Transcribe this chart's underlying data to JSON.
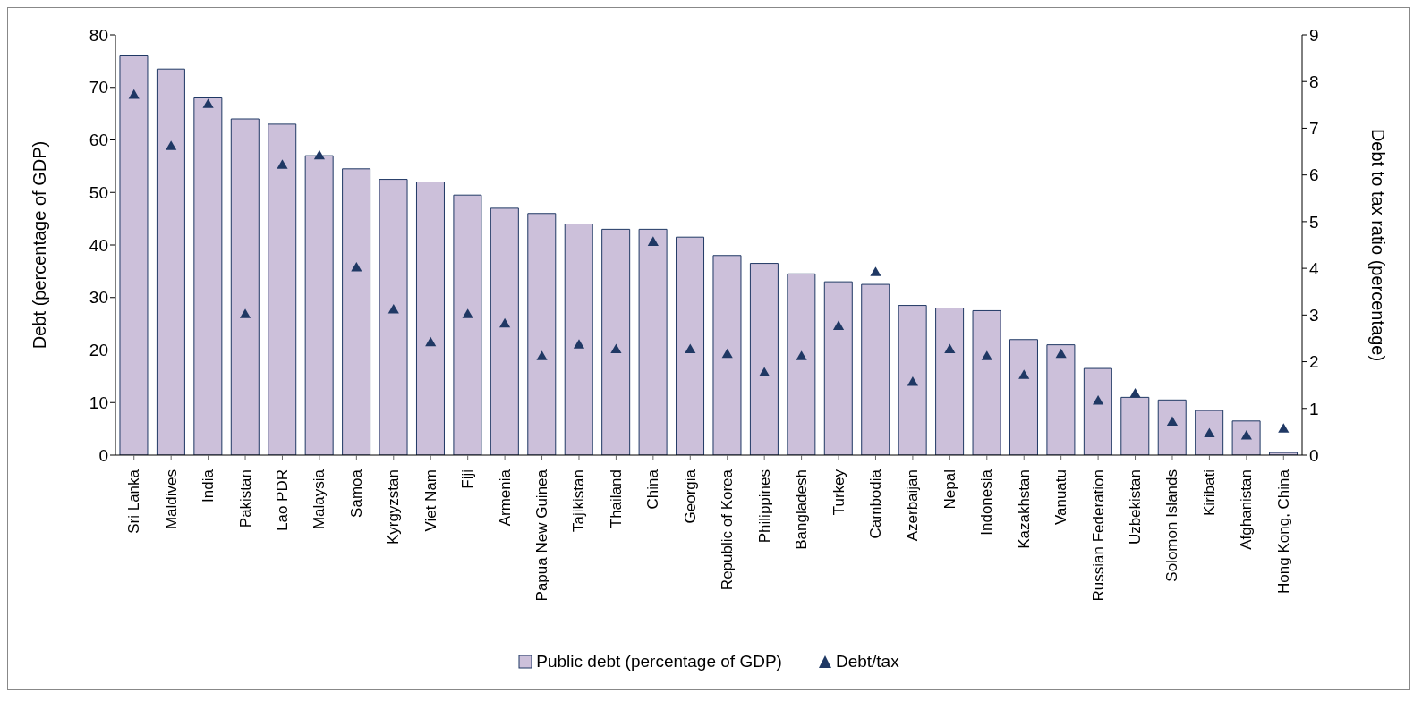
{
  "chart_data": {
    "type": "bar",
    "ylabel": "Debt (percentage of GDP)",
    "y2label": "Debt to tax ratio (percentage)",
    "categories": [
      "Sri Lanka",
      "Maldives",
      "India",
      "Pakistan",
      "Lao PDR",
      "Malaysia",
      "Samoa",
      "Kyrgyzstan",
      "Viet Nam",
      "Fiji",
      "Armenia",
      "Papua New Guinea",
      "Tajikistan",
      "Thailand",
      "China",
      "Georgia",
      "Republic of Korea",
      "Philippines",
      "Bangladesh",
      "Turkey",
      "Cambodia",
      "Azerbaijan",
      "Nepal",
      "Indonesia",
      "Kazakhstan",
      "Vanuatu",
      "Russian Federation",
      "Uzbekistan",
      "Solomon Islands",
      "Kiribati",
      "Afghanistan",
      "Hong Kong, China"
    ],
    "series": [
      {
        "name": "Public debt (percentage of GDP)",
        "color": "#ccc0da",
        "values": [
          76,
          73.5,
          68,
          64,
          63,
          57,
          54.5,
          52.5,
          52,
          49.5,
          47,
          46,
          44,
          43,
          43,
          41.5,
          38,
          36.5,
          34.5,
          33,
          32.5,
          28.5,
          28,
          27.5,
          22,
          21,
          16.5,
          11,
          10.5,
          8.5,
          6.5,
          0.5
        ]
      },
      {
        "name": "Debt/tax",
        "type": "scatter",
        "axis": "y2",
        "color": "#1f3864",
        "marker": "triangle",
        "values": [
          7.7,
          6.6,
          7.5,
          3.0,
          6.2,
          6.4,
          4.0,
          3.1,
          2.4,
          3.0,
          2.8,
          2.1,
          2.35,
          2.25,
          4.55,
          2.25,
          2.15,
          1.75,
          2.1,
          2.75,
          3.9,
          1.55,
          2.25,
          2.1,
          1.7,
          2.15,
          1.15,
          1.3,
          0.7,
          0.45,
          0.4,
          0.55
        ]
      }
    ],
    "ylim": [
      0,
      80
    ],
    "yticks": [
      0,
      10,
      20,
      30,
      40,
      50,
      60,
      70,
      80
    ],
    "y2lim": [
      0,
      9
    ],
    "y2ticks": [
      0,
      1,
      2,
      3,
      4,
      5,
      6,
      7,
      8,
      9
    ],
    "legend": "bottom"
  }
}
